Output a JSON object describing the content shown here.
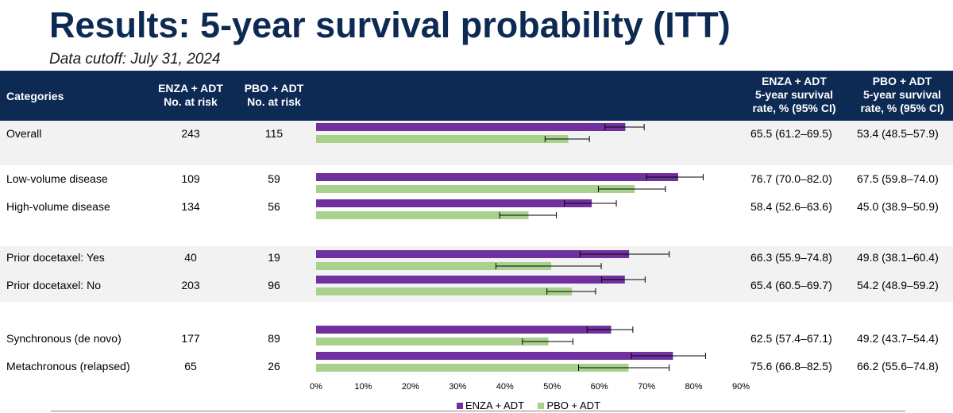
{
  "title": "Results: 5-year survival probability (ITT)",
  "subtitle": "Data cutoff: July 31, 2024",
  "header": {
    "categories": "Categories",
    "enza_risk": [
      "ENZA + ADT",
      "No. at risk"
    ],
    "pbo_risk": [
      "PBO + ADT",
      "No. at risk"
    ],
    "enza_rate": [
      "ENZA + ADT",
      "5-year survival",
      "rate, % (95% CI)"
    ],
    "pbo_rate": [
      "PBO + ADT",
      "5-year survival",
      "rate, % (95% CI)"
    ]
  },
  "colors": {
    "header_bg": "#0d2a55",
    "enza": "#7030a0",
    "pbo": "#a9d18e",
    "band": "#f2f2f2"
  },
  "rows": [
    {
      "label": "Overall",
      "enza_n": "243",
      "pbo_n": "115",
      "enza_ci": "65.5 (61.2–69.5)",
      "pbo_ci": "53.4 (48.5–57.9)"
    },
    {
      "label": "Low-volume disease",
      "enza_n": "109",
      "pbo_n": "59",
      "enza_ci": "76.7 (70.0–82.0)",
      "pbo_ci": "67.5 (59.8–74.0)"
    },
    {
      "label": "High-volume disease",
      "enza_n": "134",
      "pbo_n": "56",
      "enza_ci": "58.4 (52.6–63.6)",
      "pbo_ci": "45.0 (38.9–50.9)"
    },
    {
      "label": "Prior docetaxel: Yes",
      "enza_n": "40",
      "pbo_n": "19",
      "enza_ci": "66.3 (55.9–74.8)",
      "pbo_ci": "49.8 (38.1–60.4)"
    },
    {
      "label": "Prior docetaxel: No",
      "enza_n": "203",
      "pbo_n": "96",
      "enza_ci": "65.4 (60.5–69.7)",
      "pbo_ci": "54.2 (48.9–59.2)"
    },
    {
      "label": "Synchronous (de novo)",
      "enza_n": "177",
      "pbo_n": "89",
      "enza_ci": "62.5 (57.4–67.1)",
      "pbo_ci": "49.2 (43.7–54.4)"
    },
    {
      "label": "Metachronous (relapsed)",
      "enza_n": "65",
      "pbo_n": "26",
      "enza_ci": "75.6 (66.8–82.5)",
      "pbo_ci": "66.2 (55.6–74.8)"
    }
  ],
  "chart_data": {
    "type": "bar",
    "orientation": "horizontal",
    "categories": [
      "Overall",
      "Low-volume disease",
      "High-volume disease",
      "Prior docetaxel: Yes",
      "Prior docetaxel: No",
      "Synchronous (de novo)",
      "Metachronous (relapsed)"
    ],
    "series": [
      {
        "name": "ENZA + ADT",
        "values": [
          65.5,
          76.7,
          58.4,
          66.3,
          65.4,
          62.5,
          75.6
        ],
        "ci_low": [
          61.2,
          70.0,
          52.6,
          55.9,
          60.5,
          57.4,
          66.8
        ],
        "ci_high": [
          69.5,
          82.0,
          63.6,
          74.8,
          69.7,
          67.1,
          82.5
        ]
      },
      {
        "name": "PBO + ADT",
        "values": [
          53.4,
          67.5,
          45.0,
          49.8,
          54.2,
          49.2,
          66.2
        ],
        "ci_low": [
          48.5,
          59.8,
          38.9,
          38.1,
          48.9,
          43.7,
          55.6
        ],
        "ci_high": [
          57.9,
          74.0,
          50.9,
          60.4,
          59.2,
          54.4,
          74.8
        ]
      }
    ],
    "xlim": [
      0,
      90
    ],
    "xticks": [
      "0%",
      "10%",
      "20%",
      "30%",
      "40%",
      "50%",
      "60%",
      "70%",
      "80%",
      "90%"
    ],
    "legend_position": "bottom-center",
    "grid": false
  }
}
